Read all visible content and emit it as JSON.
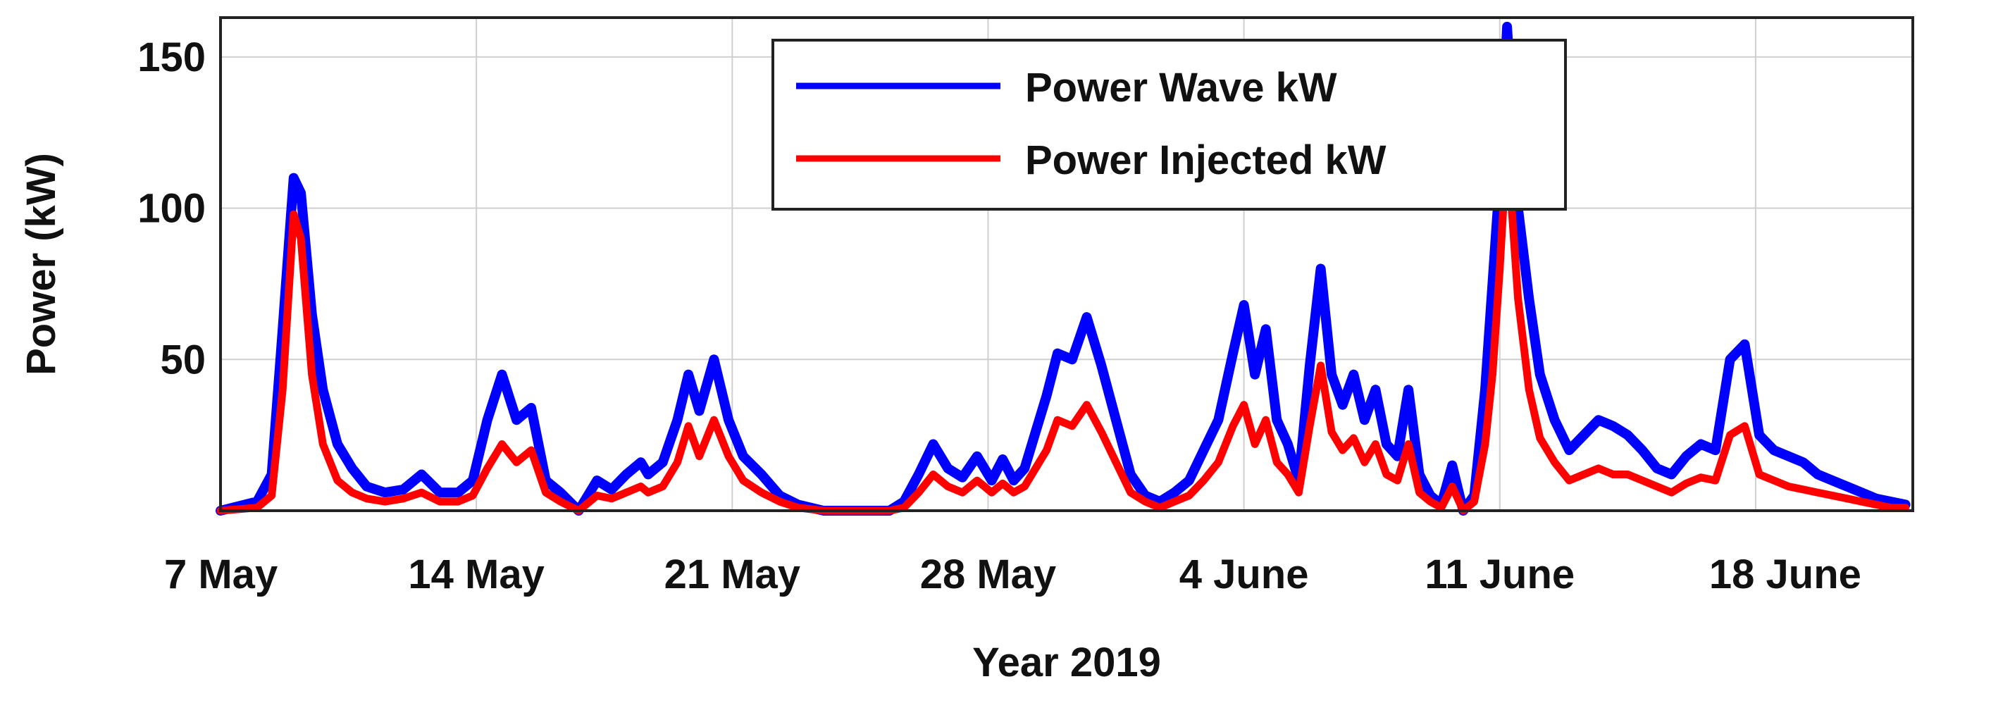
{
  "chart_data": {
    "type": "line",
    "title": "",
    "xlabel": "Year 2019",
    "ylabel": "Power (kW)",
    "xlim": [
      0,
      46.3
    ],
    "ylim": [
      0,
      163
    ],
    "x_unit": "days since 7 May 2019",
    "grid": true,
    "legend_position": "top-center",
    "x_ticks": [
      {
        "value": 0,
        "label": "7 May"
      },
      {
        "value": 7,
        "label": "14 May"
      },
      {
        "value": 14,
        "label": "21 May"
      },
      {
        "value": 21,
        "label": "28 May"
      },
      {
        "value": 28,
        "label": "4 June"
      },
      {
        "value": 35,
        "label": "11 June"
      },
      {
        "value": 42,
        "label": "18 June"
      }
    ],
    "y_ticks": [
      {
        "value": 50,
        "label": "50"
      },
      {
        "value": 100,
        "label": "100"
      },
      {
        "value": 150,
        "label": "150"
      }
    ],
    "series": [
      {
        "name": "Power Wave kW",
        "color": "#0000ff",
        "x": [
          0,
          1,
          1.4,
          1.7,
          2.0,
          2.2,
          2.5,
          2.8,
          3.2,
          3.6,
          4.0,
          4.5,
          5.0,
          5.5,
          6.0,
          6.5,
          6.9,
          7.3,
          7.7,
          8.1,
          8.5,
          8.9,
          9.3,
          9.8,
          10.3,
          10.7,
          11.1,
          11.5,
          11.7,
          12.1,
          12.5,
          12.8,
          13.1,
          13.5,
          13.9,
          14.3,
          14.8,
          15.3,
          15.8,
          16.5,
          17.2,
          17.9,
          18.3,
          18.7,
          19.1,
          19.5,
          19.9,
          20.3,
          20.7,
          21.1,
          21.4,
          21.7,
          22.0,
          22.3,
          22.6,
          22.9,
          23.3,
          23.7,
          24.1,
          24.5,
          24.9,
          25.3,
          25.7,
          26.1,
          26.5,
          26.9,
          27.3,
          27.7,
          28.0,
          28.3,
          28.6,
          28.9,
          29.2,
          29.5,
          29.8,
          30.1,
          30.4,
          30.7,
          31.0,
          31.3,
          31.6,
          31.9,
          32.2,
          32.5,
          32.8,
          33.1,
          33.4,
          33.7,
          34.0,
          34.3,
          34.6,
          34.8,
          35.0,
          35.2,
          35.5,
          35.8,
          36.1,
          36.5,
          36.9,
          37.3,
          37.7,
          38.1,
          38.5,
          38.9,
          39.3,
          39.7,
          40.1,
          40.5,
          40.9,
          41.3,
          41.7,
          42.1,
          42.5,
          42.9,
          43.3,
          43.7,
          44.1,
          44.5,
          44.9,
          45.3,
          45.7,
          46.1
        ],
        "values": [
          0,
          3,
          12,
          60,
          110,
          105,
          65,
          40,
          22,
          14,
          8,
          6,
          7,
          12,
          6,
          6,
          10,
          30,
          45,
          30,
          34,
          10,
          6,
          0,
          10,
          7,
          12,
          16,
          12,
          16,
          30,
          45,
          33,
          50,
          30,
          18,
          12,
          5,
          2,
          0,
          0,
          0,
          0,
          3,
          12,
          22,
          14,
          11,
          18,
          10,
          17,
          10,
          14,
          26,
          38,
          52,
          50,
          64,
          48,
          30,
          12,
          5,
          3,
          6,
          10,
          20,
          30,
          52,
          68,
          45,
          60,
          30,
          22,
          10,
          48,
          80,
          45,
          35,
          45,
          30,
          40,
          22,
          18,
          40,
          12,
          5,
          2,
          15,
          0,
          5,
          40,
          75,
          110,
          160,
          100,
          70,
          45,
          30,
          20,
          25,
          30,
          28,
          25,
          20,
          14,
          12,
          18,
          22,
          20,
          50,
          55,
          25,
          20,
          18,
          16,
          12,
          10,
          8,
          6,
          4,
          3,
          2
        ]
      },
      {
        "name": "Power Injected kW",
        "color": "#ff0000",
        "x": [
          0,
          1,
          1.4,
          1.7,
          2.0,
          2.2,
          2.5,
          2.8,
          3.2,
          3.6,
          4.0,
          4.5,
          5.0,
          5.5,
          6.0,
          6.5,
          6.9,
          7.3,
          7.7,
          8.1,
          8.5,
          8.9,
          9.3,
          9.8,
          10.3,
          10.7,
          11.1,
          11.5,
          11.7,
          12.1,
          12.5,
          12.8,
          13.1,
          13.5,
          13.9,
          14.3,
          14.8,
          15.3,
          15.8,
          16.5,
          17.2,
          17.9,
          18.3,
          18.7,
          19.1,
          19.5,
          19.9,
          20.3,
          20.7,
          21.1,
          21.4,
          21.7,
          22.0,
          22.3,
          22.6,
          22.9,
          23.3,
          23.7,
          24.1,
          24.5,
          24.9,
          25.3,
          25.7,
          26.1,
          26.5,
          26.9,
          27.3,
          27.7,
          28.0,
          28.3,
          28.6,
          28.9,
          29.2,
          29.5,
          29.8,
          30.1,
          30.4,
          30.7,
          31.0,
          31.3,
          31.6,
          31.9,
          32.2,
          32.5,
          32.8,
          33.1,
          33.4,
          33.7,
          34.0,
          34.3,
          34.6,
          34.8,
          35.0,
          35.2,
          35.5,
          35.8,
          36.1,
          36.5,
          36.9,
          37.3,
          37.7,
          38.1,
          38.5,
          38.9,
          39.3,
          39.7,
          40.1,
          40.5,
          40.9,
          41.3,
          41.7,
          42.1,
          42.5,
          42.9,
          43.3,
          43.7,
          44.1,
          44.5,
          44.9,
          45.3,
          45.7,
          46.1
        ],
        "values": [
          0,
          1,
          5,
          40,
          98,
          90,
          45,
          22,
          10,
          6,
          4,
          3,
          4,
          6,
          3,
          3,
          5,
          14,
          22,
          16,
          20,
          6,
          3,
          0,
          5,
          4,
          6,
          8,
          6,
          8,
          16,
          28,
          18,
          30,
          18,
          10,
          6,
          3,
          1,
          0,
          0,
          0,
          0,
          1,
          6,
          12,
          8,
          6,
          10,
          6,
          9,
          6,
          8,
          14,
          20,
          30,
          28,
          35,
          26,
          16,
          6,
          3,
          1,
          3,
          5,
          10,
          16,
          28,
          35,
          22,
          30,
          16,
          12,
          6,
          28,
          48,
          26,
          20,
          24,
          16,
          22,
          12,
          10,
          22,
          6,
          3,
          1,
          8,
          0,
          3,
          22,
          45,
          80,
          122,
          70,
          40,
          24,
          16,
          10,
          12,
          14,
          12,
          12,
          10,
          8,
          6,
          9,
          11,
          10,
          25,
          28,
          12,
          10,
          8,
          7,
          6,
          5,
          4,
          3,
          2,
          1,
          1
        ]
      }
    ]
  }
}
